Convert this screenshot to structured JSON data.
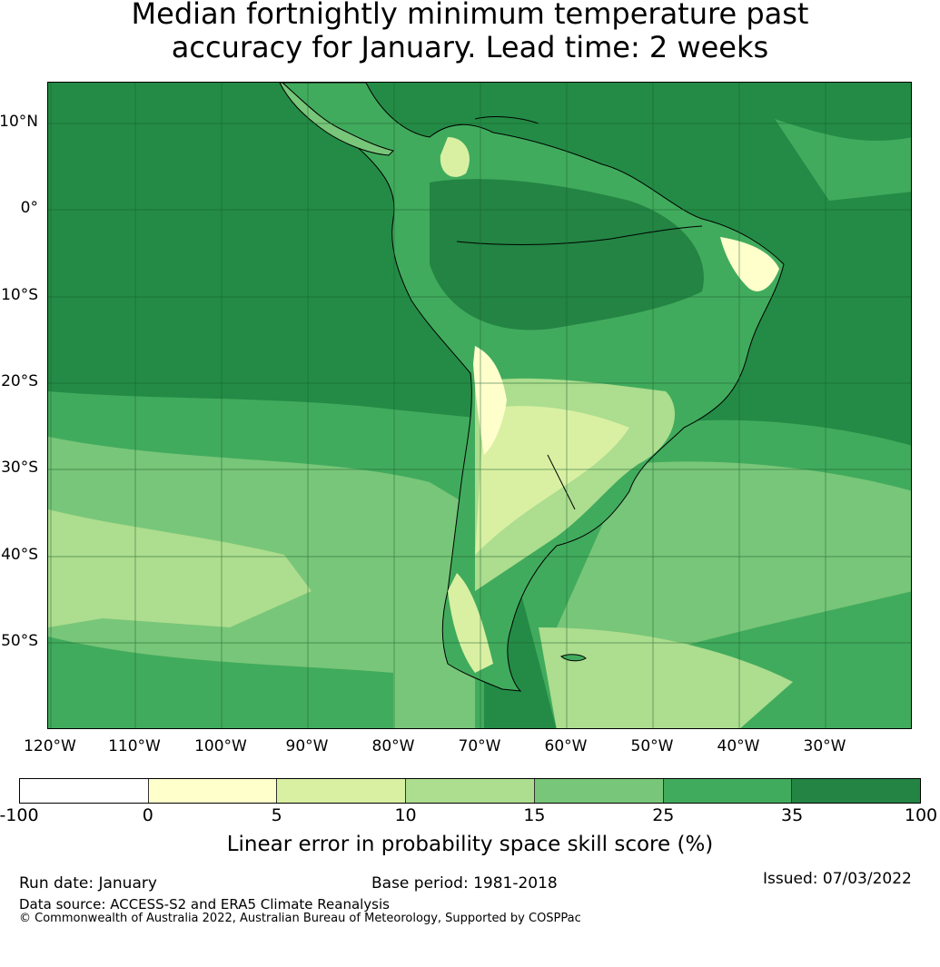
{
  "title": {
    "line1": "Median fortnightly minimum temperature past",
    "line2": "accuracy for January. Lead time: 2 weeks"
  },
  "map": {
    "lat_labels": [
      "10°N",
      "0°",
      "10°S",
      "20°S",
      "30°S",
      "40°S",
      "50°S"
    ],
    "lon_labels": [
      "120°W",
      "110°W",
      "100°W",
      "90°W",
      "80°W",
      "70°W",
      "60°W",
      "50°W",
      "40°W",
      "30°W"
    ],
    "ocean_color": "#238b45",
    "land_fill_color": "#41ab5d"
  },
  "colorbar": {
    "ticks": [
      "-100",
      "0",
      "5",
      "10",
      "15",
      "25",
      "35",
      "100"
    ],
    "colors": [
      "#ffffff",
      "#ffffcc",
      "#d9f0a3",
      "#addd8e",
      "#78c679",
      "#41ab5d",
      "#238443"
    ],
    "label": "Linear error in probability space skill score (%)"
  },
  "footer": {
    "run_date": "Run date: January",
    "base_period": "Base period: 1981-2018",
    "issued": "Issued: 07/03/2022",
    "data_source": "Data source: ACCESS-S2 and ERA5 Climate Reanalysis",
    "copyright": "© Commonwealth of Australia 2022, Australian Bureau of Meteorology, Supported by COSPPac"
  }
}
